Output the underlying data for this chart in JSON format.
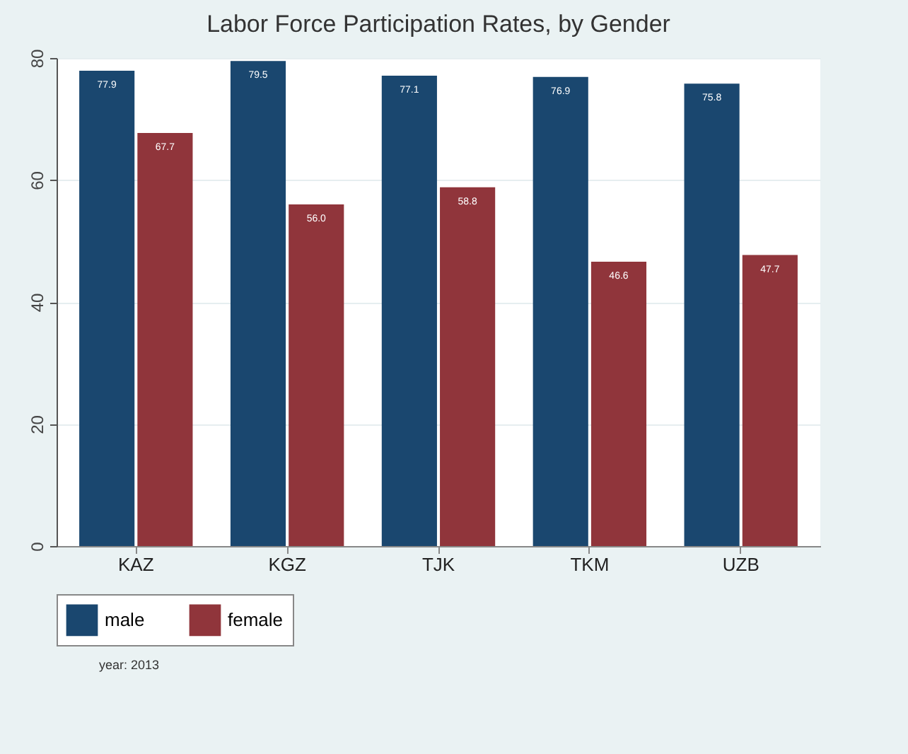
{
  "chart_data": {
    "type": "bar",
    "title": "Labor Force Participation Rates, by Gender",
    "categories": [
      "KAZ",
      "KGZ",
      "TJK",
      "TKM",
      "UZB"
    ],
    "series": [
      {
        "name": "male",
        "color": "#1a476f",
        "values": [
          77.9,
          79.5,
          77.1,
          76.9,
          75.8
        ]
      },
      {
        "name": "female",
        "color": "#90353b",
        "values": [
          67.7,
          56.0,
          58.8,
          46.6,
          47.7
        ],
        "value_labels": [
          "67.7",
          "56.0",
          "58.8",
          "46.6",
          "47.7"
        ]
      }
    ],
    "ylim": [
      0,
      80
    ],
    "yticks": [
      0,
      20,
      40,
      60,
      80
    ],
    "grid": "y",
    "legend": "bottom",
    "data_labels": true,
    "annotations": [
      "year: 2013"
    ]
  }
}
